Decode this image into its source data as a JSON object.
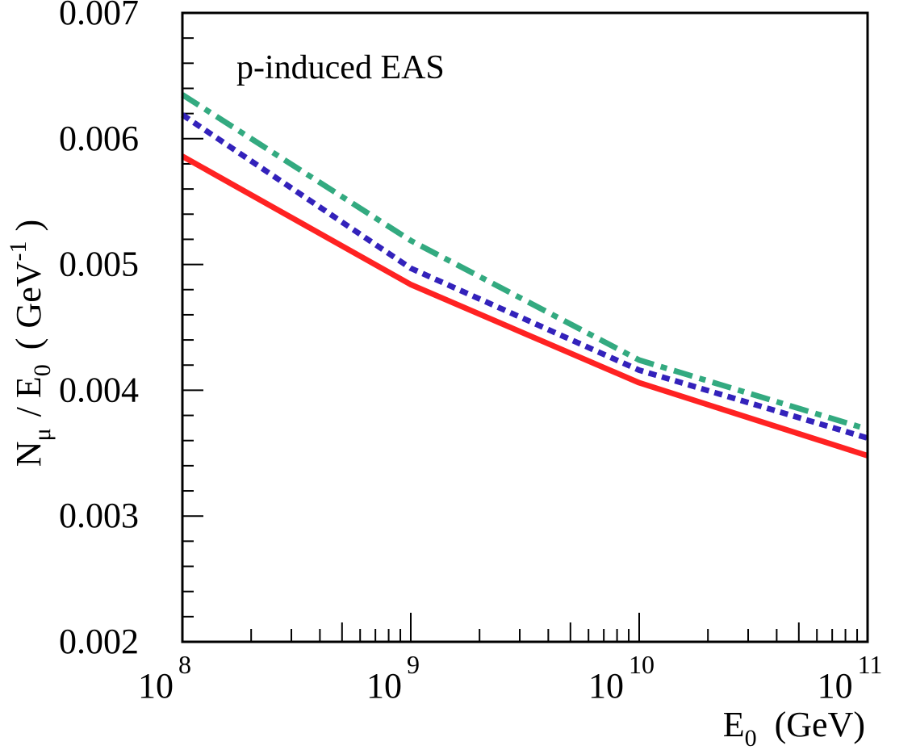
{
  "chart_data": {
    "type": "line",
    "annotation": "p-induced EAS",
    "xlabel": {
      "main": "E",
      "sub": "0",
      "unit": "(GeV)"
    },
    "ylabel": {
      "n": "N",
      "mu": "μ",
      "slash": "/ E",
      "sub0": "0",
      "open": "(",
      "gev": "GeV",
      "exp": "-1",
      "close": ")"
    },
    "x_scale": "log",
    "xlim": [
      100000000,
      100000000000
    ],
    "ylim": [
      0.002,
      0.007
    ],
    "x_ticks": [
      {
        "value": 100000000,
        "base": "10",
        "exp": "8"
      },
      {
        "value": 1000000000,
        "base": "10",
        "exp": "9"
      },
      {
        "value": 10000000000,
        "base": "10",
        "exp": "10"
      },
      {
        "value": 100000000000,
        "base": "10",
        "exp": "11"
      }
    ],
    "y_ticks": [
      {
        "value": 0.002,
        "label": "0.002"
      },
      {
        "value": 0.003,
        "label": "0.003"
      },
      {
        "value": 0.004,
        "label": "0.004"
      },
      {
        "value": 0.005,
        "label": "0.005"
      },
      {
        "value": 0.006,
        "label": "0.006"
      },
      {
        "value": 0.007,
        "label": "0.007"
      }
    ],
    "grid": false,
    "series": [
      {
        "style": "dash-dot",
        "color": "#33aa80",
        "x": [
          100000000,
          1000000000,
          10000000000,
          100000000000
        ],
        "y": [
          0.00635,
          0.00519,
          0.00424,
          0.00369
        ]
      },
      {
        "style": "dotted",
        "color": "#3322bb",
        "x": [
          100000000,
          1000000000,
          10000000000,
          100000000000
        ],
        "y": [
          0.00619,
          0.00497,
          0.00416,
          0.00362
        ]
      },
      {
        "style": "solid",
        "color": "#ff2222",
        "x": [
          100000000,
          1000000000,
          10000000000,
          100000000000
        ],
        "y": [
          0.00586,
          0.00484,
          0.00406,
          0.00348
        ]
      }
    ]
  }
}
